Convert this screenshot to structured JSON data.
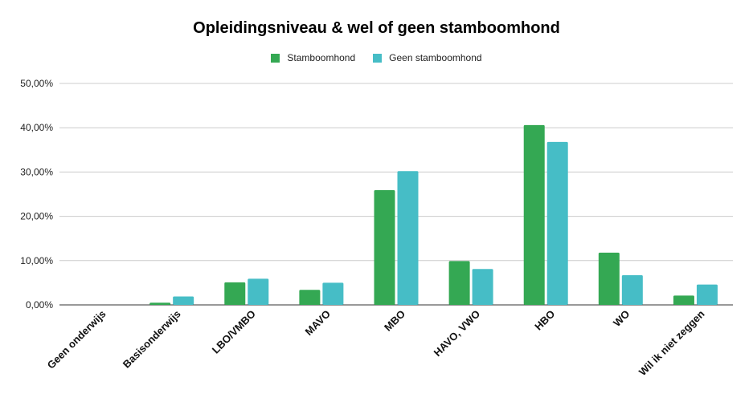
{
  "chart_data": {
    "type": "bar",
    "title": "Opleidingsniveau & wel of geen stamboomhond",
    "categories": [
      "Geen onderwijs",
      "Basisonderwijs",
      "LBO/VMBO",
      "MAVO",
      "MBO",
      "HAVO, VWO",
      "HBO",
      "WO",
      "Wil ik niet zeggen"
    ],
    "series": [
      {
        "name": "Stamboomhond",
        "color": "#34a853",
        "values": [
          0.0,
          0.5,
          5.1,
          3.4,
          25.9,
          9.9,
          40.6,
          11.8,
          2.1
        ]
      },
      {
        "name": "Geen stamboomhond",
        "color": "#46bdc6",
        "values": [
          0.0,
          1.9,
          5.9,
          5.0,
          30.2,
          8.1,
          36.8,
          6.7,
          4.6
        ]
      }
    ],
    "yticks": [
      "0,00%",
      "10,00%",
      "20,00%",
      "30,00%",
      "40,00%",
      "50,00%"
    ],
    "ylim": [
      0,
      50
    ],
    "xlabel": "",
    "ylabel": "",
    "grid": true,
    "legend_position": "top-center"
  }
}
